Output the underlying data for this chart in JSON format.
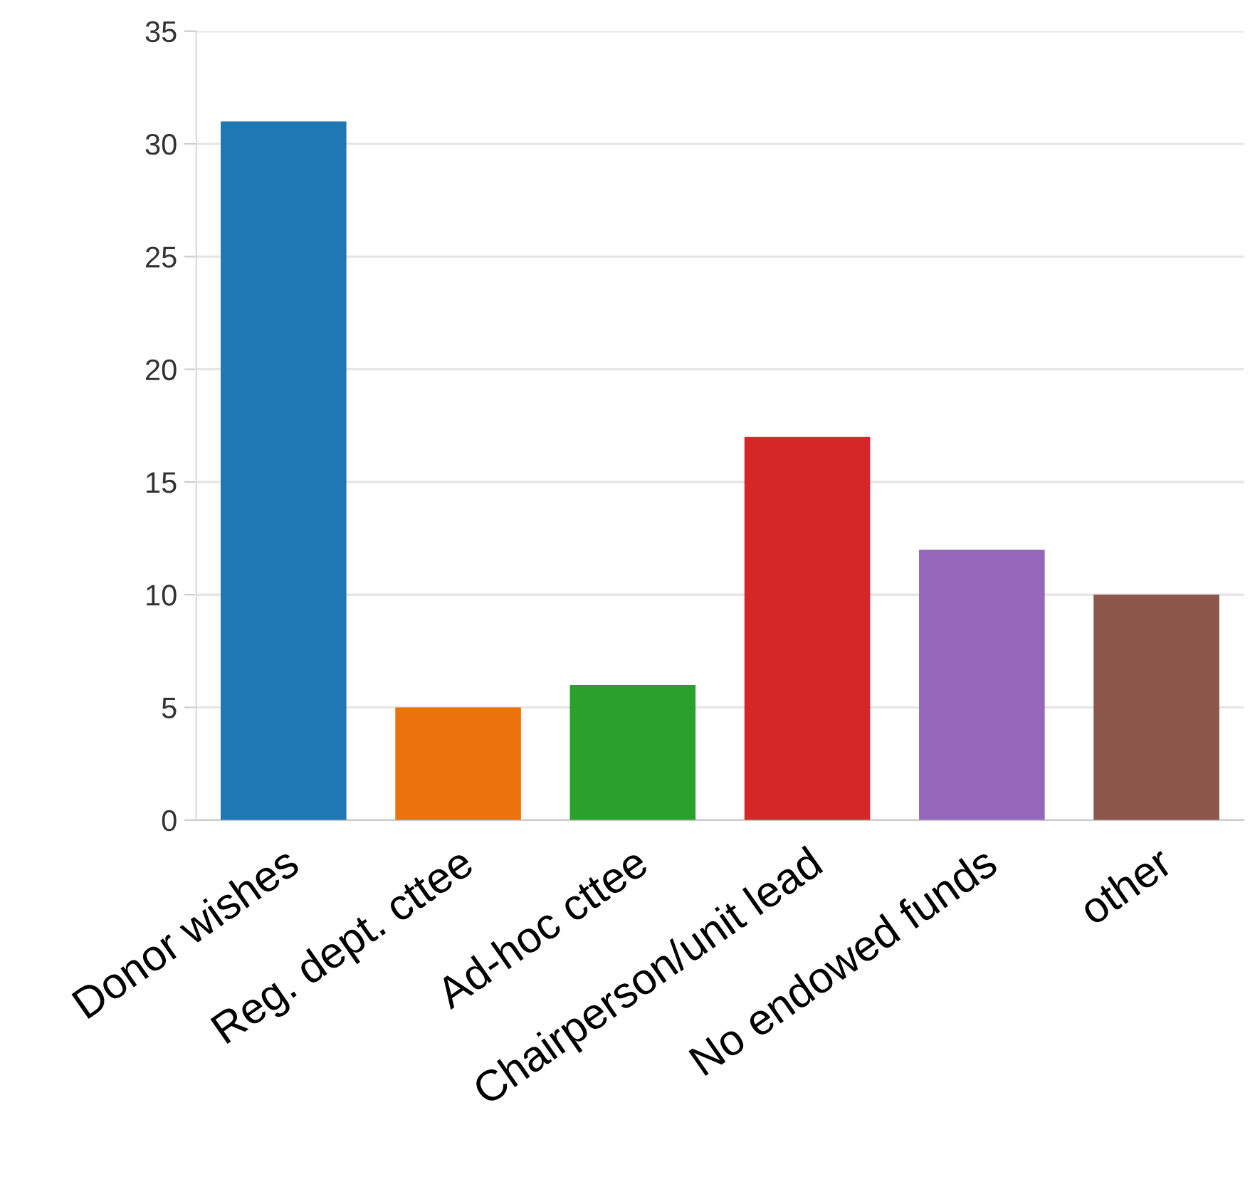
{
  "chart_data": {
    "type": "bar",
    "categories": [
      "Donor wishes",
      "Reg. dept. cttee",
      "Ad-hoc cttee",
      "Chairperson/unit lead",
      "No endowed funds",
      "other"
    ],
    "values": [
      31,
      5,
      6,
      17,
      12,
      10
    ],
    "colors": [
      "#1f77b4",
      "#ec730b",
      "#2ca02c",
      "#d62728",
      "#9467bd",
      "#8c564b"
    ],
    "ylim": [
      0,
      35
    ],
    "yticks": [
      0,
      5,
      10,
      15,
      20,
      25,
      30,
      35
    ],
    "grid": "y",
    "legend": false
  }
}
